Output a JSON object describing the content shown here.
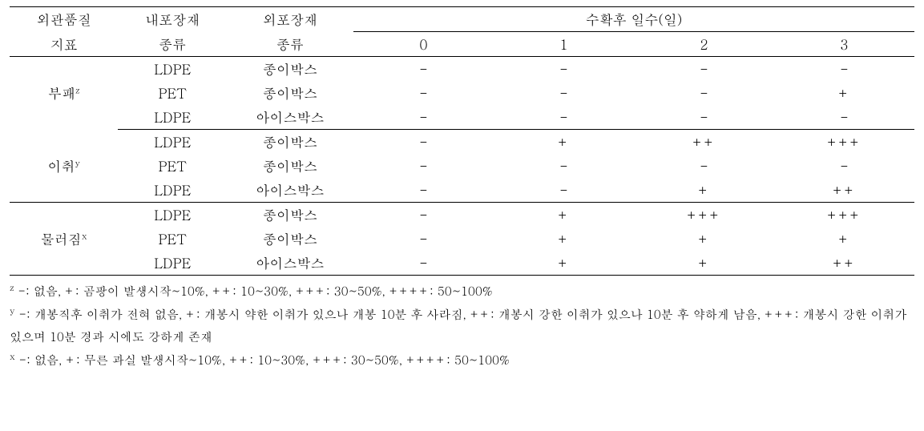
{
  "header": {
    "col1_l1": "외관품질",
    "col1_l2": "지표",
    "col2_l1": "내포장재",
    "col2_l2": "종류",
    "col3_l1": "외포장재",
    "col3_l2": "종류",
    "days_title": "수확후 일수(일)",
    "days": [
      "0",
      "1",
      "2",
      "3"
    ]
  },
  "groups": [
    {
      "label": "부패",
      "sup": "z",
      "rows": [
        {
          "inner": "LDPE",
          "outer": "종이박스",
          "vals": [
            "-",
            "-",
            "-",
            "-"
          ]
        },
        {
          "inner": "PET",
          "outer": "종이박스",
          "vals": [
            "-",
            "-",
            "-",
            "+"
          ]
        },
        {
          "inner": "LDPE",
          "outer": "아이스박스",
          "vals": [
            "-",
            "-",
            "-",
            "-"
          ]
        }
      ]
    },
    {
      "label": "이취",
      "sup": "y",
      "rows": [
        {
          "inner": "LDPE",
          "outer": "종이박스",
          "vals": [
            "-",
            "+",
            "++",
            "+++"
          ]
        },
        {
          "inner": "PET",
          "outer": "종이박스",
          "vals": [
            "-",
            "-",
            "-",
            "-"
          ]
        },
        {
          "inner": "LDPE",
          "outer": "아이스박스",
          "vals": [
            "-",
            "-",
            "+",
            "++"
          ]
        }
      ]
    },
    {
      "label": "물러짐",
      "sup": "x",
      "rows": [
        {
          "inner": "LDPE",
          "outer": "종이박스",
          "vals": [
            "-",
            "+",
            "+++",
            "+++"
          ]
        },
        {
          "inner": "PET",
          "outer": "종이박스",
          "vals": [
            "-",
            "+",
            "+",
            "+"
          ]
        },
        {
          "inner": "LDPE",
          "outer": "아이스박스",
          "vals": [
            "-",
            "+",
            "+",
            "++"
          ]
        }
      ]
    }
  ],
  "footnotes": {
    "z": "-: 없음, +: 곰팡이 발생시작~10%, ++: 10~30%, +++: 30~50%, ++++: 50~100%",
    "y": "-: 개봉직후 이취가 전혀 없음, +: 개봉시 약한 이취가 있으나 개봉 10분 후 사라짐, ++: 개봉시 강한 이취가 있으나 10분 후 약하게 남음, +++: 개봉시 강한 이취가 있으며 10분 경과 시에도 강하게 존재",
    "x": "-: 없음, +: 무른 과실 발생시작~10%, ++: 10~30%, +++: 30~50%, ++++: 50~100%"
  },
  "sups": {
    "z": "z",
    "y": "y",
    "x": "x"
  }
}
